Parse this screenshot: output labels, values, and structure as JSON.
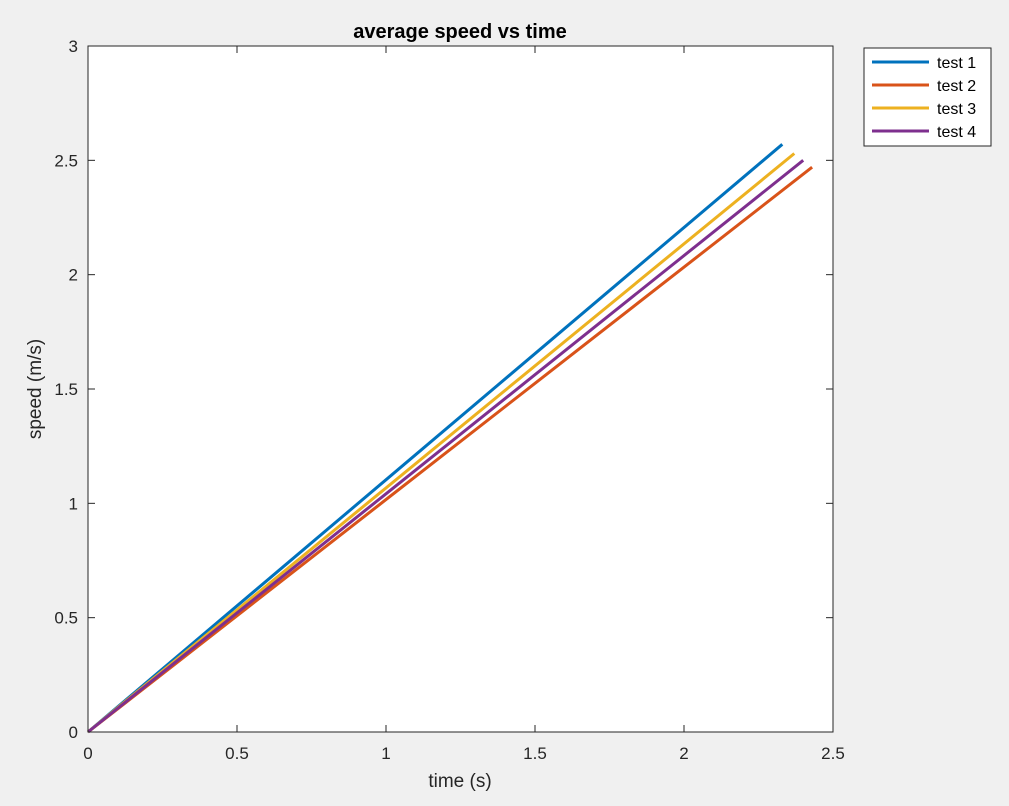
{
  "chart_data": {
    "type": "line",
    "title": "average speed vs time",
    "xlabel": "time (s)",
    "ylabel": "speed (m/s)",
    "xlim": [
      0,
      2.5
    ],
    "ylim": [
      0,
      3
    ],
    "xticks": [
      0,
      0.5,
      1,
      1.5,
      2,
      2.5
    ],
    "yticks": [
      0,
      0.5,
      1,
      1.5,
      2,
      2.5,
      3
    ],
    "xtick_labels": [
      "0",
      "0.5",
      "1",
      "1.5",
      "2",
      "2.5"
    ],
    "ytick_labels": [
      "0",
      "0.5",
      "1",
      "1.5",
      "2",
      "2.5",
      "3"
    ],
    "grid": false,
    "legend_position": "outside-top-right",
    "series": [
      {
        "name": "test 1",
        "color": "#0072BD",
        "x": [
          0,
          2.33
        ],
        "y": [
          0,
          2.57
        ]
      },
      {
        "name": "test 2",
        "color": "#D95319",
        "x": [
          0,
          2.43
        ],
        "y": [
          0,
          2.47
        ]
      },
      {
        "name": "test 3",
        "color": "#EDB120",
        "x": [
          0,
          2.37
        ],
        "y": [
          0,
          2.53
        ]
      },
      {
        "name": "test 4",
        "color": "#7E2F8E",
        "x": [
          0,
          2.4
        ],
        "y": [
          0,
          2.5
        ]
      }
    ]
  }
}
